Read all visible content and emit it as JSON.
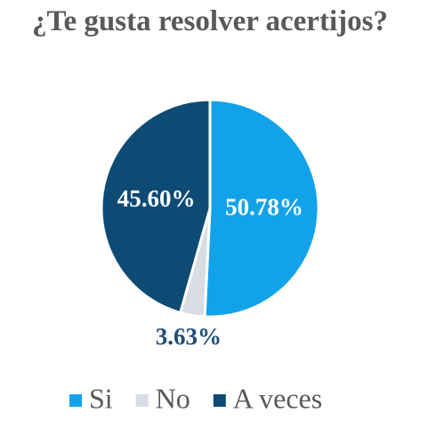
{
  "chart_data": {
    "type": "pie",
    "title": "¿Te gusta resolver acertijos?",
    "categories": [
      "Si",
      "No",
      "A veces"
    ],
    "values": [
      50.78,
      3.63,
      45.6
    ],
    "value_labels": [
      "50.78%",
      "3.63%",
      "45.60%"
    ],
    "colors": [
      "#12a2ea",
      "#d9dde3",
      "#0e4b74"
    ]
  }
}
